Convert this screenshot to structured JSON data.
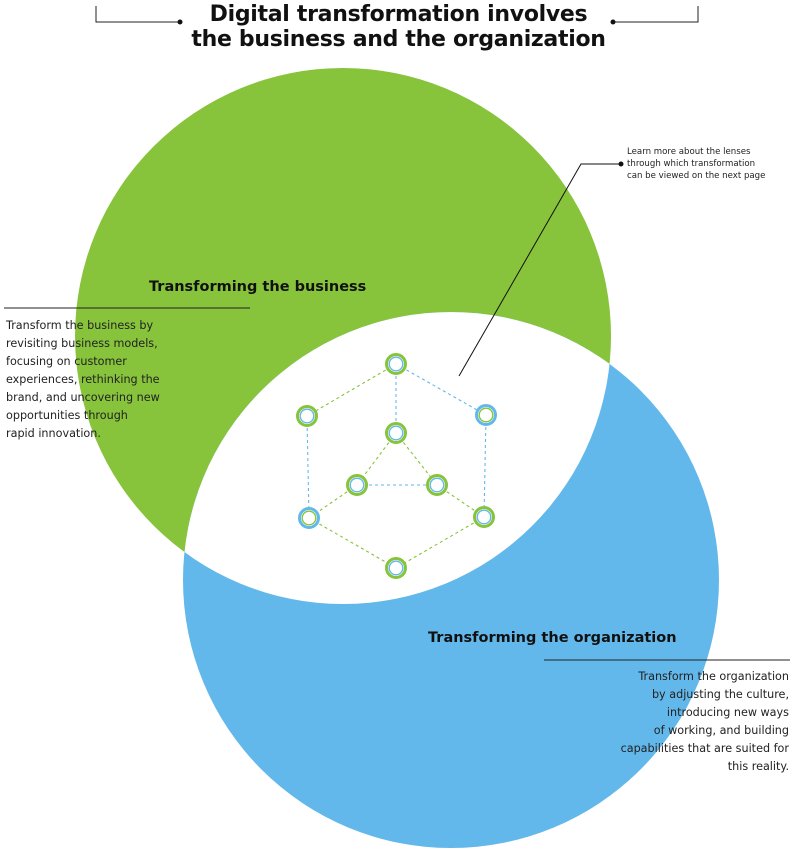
{
  "title_line1": "Digital transformation involves",
  "title_line2": "the business and the organization",
  "business": {
    "heading": "Transforming the business",
    "lines": [
      "Transform the business by",
      "revisiting business models,",
      "focusing on customer",
      "experiences, rethinking the",
      "brand, and uncovering new",
      "opportunities through",
      "rapid innovation."
    ],
    "color": "#87c33b"
  },
  "organization": {
    "heading": "Transforming the organization",
    "lines": [
      "Transform the organization",
      "by adjusting the culture,",
      "introducing new ways",
      "of working, and building",
      "capabilities that are suited for",
      "this reality."
    ],
    "color": "#63b8eb"
  },
  "note": {
    "lines": [
      "Learn more about the lenses",
      "through which transformation",
      "can be viewed on the next page"
    ]
  },
  "network_colors": {
    "green": "#87c33b",
    "blue": "#63b8eb"
  }
}
